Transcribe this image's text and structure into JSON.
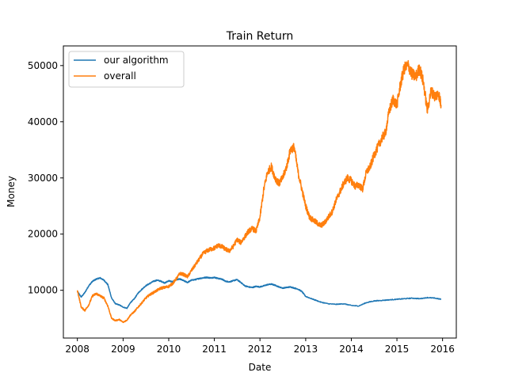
{
  "chart_data": {
    "type": "line",
    "title": "Train Return",
    "xlabel": "Date",
    "ylabel": "Money",
    "xlim": [
      "2007-09-11",
      "2016-04-20"
    ],
    "ylim": [
      1500,
      53500
    ],
    "xticks": [
      {
        "value": "2008-01-01",
        "label": "2008"
      },
      {
        "value": "2009-01-01",
        "label": "2009"
      },
      {
        "value": "2010-01-01",
        "label": "2010"
      },
      {
        "value": "2011-01-01",
        "label": "2011"
      },
      {
        "value": "2012-01-01",
        "label": "2012"
      },
      {
        "value": "2013-01-01",
        "label": "2013"
      },
      {
        "value": "2014-01-01",
        "label": "2014"
      },
      {
        "value": "2015-01-01",
        "label": "2015"
      },
      {
        "value": "2016-01-01",
        "label": "2016"
      }
    ],
    "yticks": [
      10000,
      20000,
      30000,
      40000,
      50000
    ],
    "ytick_labels": [
      "10000",
      "20000",
      "30000",
      "40000",
      "50000"
    ],
    "grid": false,
    "legend": "top-left",
    "series": [
      {
        "name": "our algorithm",
        "color": "#1f77b4",
        "x": [
          "2008-01-01",
          "2008-02-01",
          "2008-03-01",
          "2008-04-01",
          "2008-05-01",
          "2008-06-01",
          "2008-07-01",
          "2008-08-01",
          "2008-09-01",
          "2008-10-01",
          "2008-11-01",
          "2008-12-01",
          "2009-01-01",
          "2009-02-01",
          "2009-03-01",
          "2009-04-01",
          "2009-05-01",
          "2009-06-01",
          "2009-07-01",
          "2009-08-01",
          "2009-09-01",
          "2009-10-01",
          "2009-11-01",
          "2009-12-01",
          "2010-01-01",
          "2010-02-01",
          "2010-03-01",
          "2010-04-01",
          "2010-05-01",
          "2010-06-01",
          "2010-07-01",
          "2010-08-01",
          "2010-09-01",
          "2010-10-01",
          "2010-11-01",
          "2010-12-01",
          "2011-01-01",
          "2011-02-01",
          "2011-03-01",
          "2011-04-01",
          "2011-05-01",
          "2011-06-01",
          "2011-07-01",
          "2011-08-01",
          "2011-09-01",
          "2011-10-01",
          "2011-11-01",
          "2011-12-01",
          "2012-01-01",
          "2012-02-01",
          "2012-03-01",
          "2012-04-01",
          "2012-05-01",
          "2012-06-01",
          "2012-07-01",
          "2012-08-01",
          "2012-09-01",
          "2012-10-01",
          "2012-11-01",
          "2012-12-01",
          "2013-01-01",
          "2013-03-01",
          "2013-05-01",
          "2013-07-01",
          "2013-09-01",
          "2013-11-01",
          "2014-01-01",
          "2014-03-01",
          "2014-05-01",
          "2014-07-01",
          "2014-09-01",
          "2014-11-01",
          "2015-01-01",
          "2015-03-01",
          "2015-05-01",
          "2015-07-01",
          "2015-09-01",
          "2015-11-01",
          "2015-12-20"
        ],
        "values": [
          9800,
          8800,
          9600,
          10800,
          11600,
          12000,
          12200,
          11800,
          11000,
          8600,
          7600,
          7400,
          7000,
          6800,
          7800,
          8500,
          9500,
          10200,
          10800,
          11200,
          11600,
          11800,
          11600,
          11300,
          11700,
          11500,
          11900,
          12000,
          11700,
          11400,
          11800,
          11900,
          12100,
          12200,
          12300,
          12200,
          12300,
          12100,
          12000,
          11600,
          11500,
          11700,
          11900,
          11400,
          10800,
          10600,
          10500,
          10700,
          10600,
          10800,
          11000,
          11100,
          10900,
          10600,
          10400,
          10500,
          10600,
          10400,
          10200,
          9800,
          8900,
          8400,
          7900,
          7600,
          7500,
          7600,
          7300,
          7200,
          7800,
          8100,
          8200,
          8300,
          8400,
          8500,
          8600,
          8500,
          8700,
          8600,
          8400
        ]
      },
      {
        "name": "overall",
        "color": "#ff7f0e",
        "x": [
          "2008-01-01",
          "2008-02-01",
          "2008-03-01",
          "2008-04-01",
          "2008-05-01",
          "2008-06-01",
          "2008-07-01",
          "2008-08-01",
          "2008-09-01",
          "2008-10-01",
          "2008-11-01",
          "2008-12-01",
          "2009-01-01",
          "2009-02-01",
          "2009-03-01",
          "2009-04-01",
          "2009-05-01",
          "2009-06-01",
          "2009-07-01",
          "2009-08-01",
          "2009-09-01",
          "2009-10-01",
          "2009-11-01",
          "2009-12-01",
          "2010-01-01",
          "2010-02-01",
          "2010-03-01",
          "2010-04-01",
          "2010-05-01",
          "2010-06-01",
          "2010-07-01",
          "2010-08-01",
          "2010-09-01",
          "2010-10-01",
          "2010-11-01",
          "2010-12-01",
          "2011-01-01",
          "2011-02-01",
          "2011-03-01",
          "2011-04-01",
          "2011-05-01",
          "2011-06-01",
          "2011-07-01",
          "2011-08-01",
          "2011-09-01",
          "2011-10-01",
          "2011-11-01",
          "2011-12-01",
          "2012-01-01",
          "2012-02-01",
          "2012-03-01",
          "2012-04-01",
          "2012-05-01",
          "2012-06-01",
          "2012-07-01",
          "2012-08-01",
          "2012-09-01",
          "2012-10-01",
          "2012-11-01",
          "2012-12-01",
          "2013-01-01",
          "2013-02-01",
          "2013-03-01",
          "2013-04-01",
          "2013-05-01",
          "2013-06-01",
          "2013-07-01",
          "2013-08-01",
          "2013-09-01",
          "2013-10-01",
          "2013-11-01",
          "2013-12-01",
          "2014-01-01",
          "2014-02-01",
          "2014-03-01",
          "2014-04-01",
          "2014-05-01",
          "2014-06-01",
          "2014-07-01",
          "2014-08-01",
          "2014-09-01",
          "2014-10-01",
          "2014-11-01",
          "2014-12-01",
          "2015-01-01",
          "2015-02-01",
          "2015-03-01",
          "2015-04-01",
          "2015-05-01",
          "2015-06-01",
          "2015-07-01",
          "2015-08-01",
          "2015-09-01",
          "2015-10-01",
          "2015-11-01",
          "2015-12-01",
          "2015-12-20"
        ],
        "values": [
          10000,
          7000,
          6400,
          7400,
          9000,
          9400,
          9000,
          8600,
          7200,
          5000,
          4600,
          4800,
          4300,
          4700,
          5600,
          6200,
          7000,
          7800,
          8600,
          9200,
          9600,
          10000,
          10400,
          10500,
          10700,
          11200,
          12000,
          13000,
          12800,
          12400,
          13500,
          14500,
          15500,
          16500,
          17000,
          17300,
          17500,
          18000,
          17800,
          17300,
          17000,
          17800,
          19000,
          18500,
          19500,
          20500,
          21000,
          20500,
          23000,
          28000,
          31000,
          32000,
          30000,
          29000,
          30000,
          32000,
          35000,
          35500,
          31000,
          28000,
          25000,
          23000,
          22500,
          22000,
          21500,
          22000,
          23000,
          24000,
          26000,
          27500,
          29000,
          30000,
          29500,
          28500,
          28800,
          28000,
          31000,
          32000,
          34000,
          35500,
          37000,
          38000,
          42000,
          44000,
          43000,
          47000,
          49500,
          50000,
          48500,
          48000,
          49500,
          47000,
          42000,
          45500,
          44500,
          45000,
          43000
        ]
      }
    ]
  }
}
